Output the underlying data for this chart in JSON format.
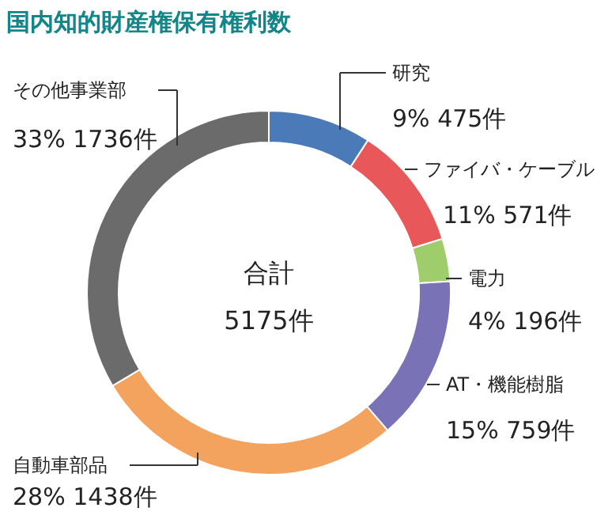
{
  "chart_data": {
    "type": "donut",
    "title": "国内知的財産権保有権利数",
    "categories": [
      "研究",
      "ファイバ・ケーブル",
      "電力",
      "AT・機能樹脂",
      "自動車部品",
      "その他事業部"
    ],
    "values": [
      475,
      571,
      196,
      759,
      1438,
      1736
    ],
    "value_labels": [
      "9% 475件",
      "11% 571件",
      "4% 196件",
      "15% 759件",
      "28% 1438件",
      "33% 1736件"
    ],
    "colors": [
      "#4a7ab8",
      "#e8585a",
      "#9fcd6b",
      "#7a72b6",
      "#f4a35e",
      "#6b6b6b"
    ],
    "annotations": [
      "合計",
      "5175件"
    ],
    "legend": false
  }
}
